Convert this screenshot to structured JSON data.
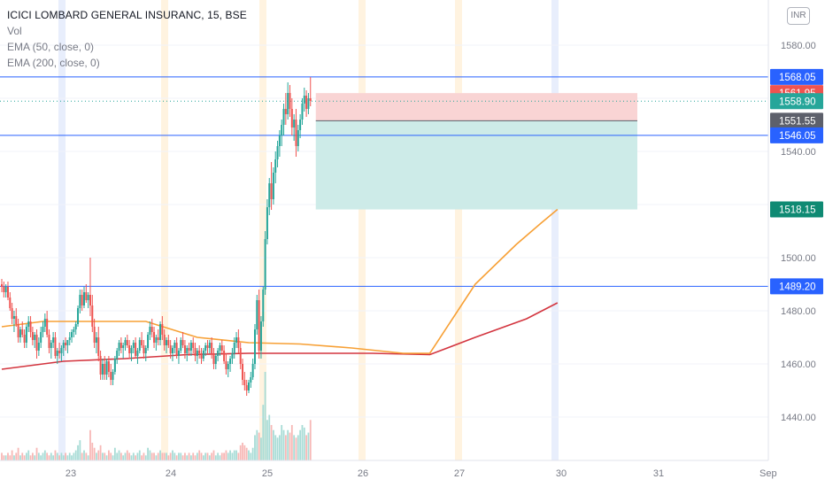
{
  "legend": {
    "title": "ICICI LOMBARD GENERAL INSURANC, 15, BSE",
    "indicators": [
      "Vol",
      "EMA (50, close, 0)",
      "EMA (200, close, 0)"
    ]
  },
  "currency_button": "INR",
  "colors": {
    "up": "#26a69a",
    "down": "#ef5350",
    "ema50": "#f7a035",
    "ema200": "#d3353f",
    "hline": "#2962ff",
    "last_price": "#26a69a",
    "stop_zone": "#f9d4d4",
    "target_zone": "#cdebe8",
    "entry_label": "#5d606b",
    "stop_label": "#ef5350",
    "session_band_orange": "#fff3e0",
    "session_band_blue": "#e8eefc"
  },
  "chart_data": {
    "type": "candlestick",
    "symbol": "ICICI LOMBARD GENERAL INSURANC",
    "interval": "15",
    "exchange": "BSE",
    "x_tick_labels": [
      "23",
      "24",
      "25",
      "26",
      "27",
      "30",
      "31",
      "Sep"
    ],
    "y_ticks": [
      1440,
      1460,
      1480,
      1500,
      1520,
      1540,
      1560,
      1580
    ],
    "y_tick_labels": [
      "1440.00",
      "1460.00",
      "1480.00",
      "1500.00",
      "1540.00",
      "1580.00"
    ],
    "ylim": [
      1417.0,
      1595.0
    ],
    "horizontal_lines": [
      1568.05,
      1546.05,
      1489.2
    ],
    "price_labels": [
      {
        "value": 1568.05,
        "text": "1568.05",
        "kind": "hline"
      },
      {
        "value": 1561.95,
        "text": "1561.95",
        "kind": "stop"
      },
      {
        "value": 1558.9,
        "text": "1558.90",
        "kind": "last"
      },
      {
        "value": 1551.55,
        "text": "1551.55",
        "kind": "entry"
      },
      {
        "value": 1546.05,
        "text": "1546.05",
        "kind": "hline"
      },
      {
        "value": 1518.15,
        "text": "1518.15",
        "kind": "target"
      },
      {
        "value": 1489.2,
        "text": "1489.20",
        "kind": "hline"
      }
    ],
    "short_position": {
      "entry": 1551.55,
      "stop": 1561.95,
      "target": 1518.15
    },
    "last_price": 1558.9,
    "ema50_path": [
      {
        "i": 0,
        "v": 1474
      },
      {
        "i": 20,
        "v": 1476
      },
      {
        "i": 45,
        "v": 1476
      },
      {
        "i": 70,
        "v": 1476
      },
      {
        "i": 95,
        "v": 1470
      },
      {
        "i": 120,
        "v": 1468
      },
      {
        "i": 145,
        "v": 1467.5
      },
      {
        "i": 170,
        "v": 1466
      },
      {
        "i": 195,
        "v": 1464
      },
      {
        "i": 208,
        "v": 1464
      },
      {
        "i": 230,
        "v": 1490
      },
      {
        "i": 250,
        "v": 1505
      },
      {
        "i": 262,
        "v": 1513
      },
      {
        "i": 270,
        "v": 1518.15
      }
    ],
    "ema200_path": [
      {
        "i": 0,
        "v": 1458
      },
      {
        "i": 30,
        "v": 1461
      },
      {
        "i": 60,
        "v": 1462
      },
      {
        "i": 90,
        "v": 1463.5
      },
      {
        "i": 120,
        "v": 1464
      },
      {
        "i": 150,
        "v": 1464
      },
      {
        "i": 180,
        "v": 1464
      },
      {
        "i": 208,
        "v": 1463.5
      },
      {
        "i": 230,
        "v": 1470
      },
      {
        "i": 255,
        "v": 1477
      },
      {
        "i": 270,
        "v": 1483
      }
    ],
    "candles": [
      [
        1490,
        1492,
        1487,
        1489
      ],
      [
        1489,
        1491,
        1485,
        1487
      ],
      [
        1487,
        1490,
        1485,
        1489
      ],
      [
        1489,
        1491,
        1484,
        1485
      ],
      [
        1485,
        1487,
        1480,
        1481
      ],
      [
        1481,
        1483,
        1475,
        1477
      ],
      [
        1477,
        1480,
        1472,
        1478
      ],
      [
        1478,
        1481,
        1474,
        1475
      ],
      [
        1475,
        1477,
        1468,
        1470
      ],
      [
        1470,
        1474,
        1468,
        1473
      ],
      [
        1473,
        1476,
        1470,
        1471
      ],
      [
        1471,
        1473,
        1466,
        1468
      ],
      [
        1468,
        1475,
        1466,
        1474
      ],
      [
        1474,
        1478,
        1472,
        1476
      ],
      [
        1476,
        1478,
        1470,
        1472
      ],
      [
        1472,
        1474,
        1467,
        1469
      ],
      [
        1469,
        1472,
        1466,
        1471
      ],
      [
        1471,
        1473,
        1462,
        1465
      ],
      [
        1465,
        1470,
        1463,
        1468
      ],
      [
        1468,
        1474,
        1466,
        1472
      ],
      [
        1472,
        1476,
        1470,
        1474
      ],
      [
        1474,
        1479,
        1472,
        1477
      ],
      [
        1477,
        1480,
        1470,
        1471
      ],
      [
        1471,
        1473,
        1464,
        1466
      ],
      [
        1466,
        1469,
        1462,
        1468
      ],
      [
        1468,
        1472,
        1466,
        1470
      ],
      [
        1470,
        1472,
        1462,
        1463
      ],
      [
        1463,
        1466,
        1460,
        1465
      ],
      [
        1465,
        1468,
        1462,
        1464
      ],
      [
        1464,
        1467,
        1461,
        1466
      ],
      [
        1466,
        1469,
        1463,
        1468
      ],
      [
        1468,
        1470,
        1465,
        1467
      ],
      [
        1467,
        1469,
        1464,
        1469
      ],
      [
        1469,
        1472,
        1467,
        1470
      ],
      [
        1470,
        1473,
        1468,
        1472
      ],
      [
        1472,
        1474,
        1470,
        1473
      ],
      [
        1473,
        1476,
        1471,
        1475
      ],
      [
        1475,
        1482,
        1474,
        1481
      ],
      [
        1481,
        1488,
        1479,
        1486
      ],
      [
        1486,
        1488,
        1480,
        1482
      ],
      [
        1482,
        1489,
        1481,
        1487
      ],
      [
        1487,
        1490,
        1483,
        1484
      ],
      [
        1484,
        1487,
        1481,
        1486
      ],
      [
        1486,
        1500,
        1478,
        1482
      ],
      [
        1482,
        1486,
        1472,
        1474
      ],
      [
        1474,
        1477,
        1466,
        1468
      ],
      [
        1468,
        1472,
        1464,
        1470
      ],
      [
        1470,
        1474,
        1461,
        1463
      ],
      [
        1463,
        1465,
        1454,
        1456
      ],
      [
        1456,
        1462,
        1454,
        1460
      ],
      [
        1460,
        1463,
        1454,
        1456
      ],
      [
        1456,
        1462,
        1454,
        1461
      ],
      [
        1461,
        1463,
        1455,
        1457
      ],
      [
        1457,
        1460,
        1452,
        1454
      ],
      [
        1454,
        1458,
        1452,
        1457
      ],
      [
        1457,
        1463,
        1456,
        1462
      ],
      [
        1462,
        1466,
        1460,
        1465
      ],
      [
        1465,
        1469,
        1463,
        1468
      ],
      [
        1468,
        1470,
        1464,
        1466
      ],
      [
        1466,
        1468,
        1462,
        1467
      ],
      [
        1467,
        1470,
        1465,
        1469
      ],
      [
        1469,
        1471,
        1466,
        1467
      ],
      [
        1467,
        1469,
        1462,
        1464
      ],
      [
        1464,
        1467,
        1461,
        1466
      ],
      [
        1466,
        1469,
        1464,
        1468
      ],
      [
        1468,
        1470,
        1462,
        1463
      ],
      [
        1463,
        1466,
        1460,
        1465
      ],
      [
        1465,
        1470,
        1464,
        1469
      ],
      [
        1469,
        1472,
        1466,
        1467
      ],
      [
        1467,
        1469,
        1462,
        1464
      ],
      [
        1464,
        1467,
        1461,
        1466
      ],
      [
        1466,
        1472,
        1465,
        1471
      ],
      [
        1471,
        1476,
        1469,
        1474
      ],
      [
        1474,
        1477,
        1470,
        1472
      ],
      [
        1472,
        1474,
        1466,
        1468
      ],
      [
        1468,
        1471,
        1465,
        1470
      ],
      [
        1470,
        1473,
        1467,
        1469
      ],
      [
        1469,
        1476,
        1467,
        1475
      ],
      [
        1475,
        1478,
        1469,
        1471
      ],
      [
        1471,
        1473,
        1465,
        1467
      ],
      [
        1467,
        1470,
        1464,
        1469
      ],
      [
        1469,
        1471,
        1466,
        1467
      ],
      [
        1467,
        1469,
        1462,
        1464
      ],
      [
        1464,
        1467,
        1461,
        1466
      ],
      [
        1466,
        1469,
        1464,
        1468
      ],
      [
        1468,
        1470,
        1462,
        1463
      ],
      [
        1463,
        1466,
        1460,
        1465
      ],
      [
        1465,
        1470,
        1464,
        1469
      ],
      [
        1469,
        1472,
        1466,
        1467
      ],
      [
        1467,
        1469,
        1462,
        1464
      ],
      [
        1464,
        1467,
        1461,
        1466
      ],
      [
        1466,
        1468,
        1463,
        1465
      ],
      [
        1465,
        1469,
        1463,
        1468
      ],
      [
        1468,
        1470,
        1464,
        1466
      ],
      [
        1466,
        1468,
        1461,
        1463
      ],
      [
        1463,
        1466,
        1460,
        1465
      ],
      [
        1465,
        1467,
        1462,
        1464
      ],
      [
        1464,
        1466,
        1460,
        1462
      ],
      [
        1462,
        1466,
        1461,
        1465
      ],
      [
        1465,
        1468,
        1463,
        1467
      ],
      [
        1467,
        1469,
        1464,
        1466
      ],
      [
        1466,
        1469,
        1464,
        1468
      ],
      [
        1468,
        1470,
        1462,
        1464
      ],
      [
        1464,
        1466,
        1458,
        1460
      ],
      [
        1460,
        1464,
        1458,
        1463
      ],
      [
        1463,
        1466,
        1461,
        1465
      ],
      [
        1465,
        1468,
        1463,
        1467
      ],
      [
        1467,
        1469,
        1464,
        1465
      ],
      [
        1465,
        1467,
        1460,
        1461
      ],
      [
        1461,
        1464,
        1456,
        1458
      ],
      [
        1458,
        1461,
        1455,
        1460
      ],
      [
        1460,
        1463,
        1457,
        1462
      ],
      [
        1462,
        1466,
        1460,
        1464
      ],
      [
        1464,
        1470,
        1462,
        1468
      ],
      [
        1468,
        1472,
        1466,
        1470
      ],
      [
        1470,
        1473,
        1464,
        1466
      ],
      [
        1466,
        1468,
        1458,
        1460
      ],
      [
        1460,
        1462,
        1452,
        1454
      ],
      [
        1454,
        1457,
        1450,
        1452
      ],
      [
        1452,
        1454,
        1448,
        1450
      ],
      [
        1450,
        1454,
        1449,
        1453
      ],
      [
        1453,
        1457,
        1451,
        1455
      ],
      [
        1455,
        1462,
        1454,
        1460
      ],
      [
        1460,
        1475,
        1458,
        1473
      ],
      [
        1473,
        1486,
        1471,
        1484
      ],
      [
        1484,
        1488,
        1462,
        1465
      ],
      [
        1465,
        1478,
        1462,
        1476
      ],
      [
        1476,
        1489,
        1474,
        1488
      ],
      [
        1488,
        1510,
        1486,
        1507
      ],
      [
        1507,
        1522,
        1505,
        1519
      ],
      [
        1519,
        1530,
        1516,
        1528
      ],
      [
        1528,
        1536,
        1518,
        1522
      ],
      [
        1522,
        1534,
        1520,
        1532
      ],
      [
        1532,
        1540,
        1528,
        1537
      ],
      [
        1537,
        1544,
        1534,
        1542
      ],
      [
        1542,
        1548,
        1538,
        1546
      ],
      [
        1546,
        1552,
        1542,
        1550
      ],
      [
        1550,
        1558,
        1546,
        1556
      ],
      [
        1556,
        1562,
        1550,
        1554
      ],
      [
        1554,
        1566,
        1552,
        1562
      ],
      [
        1562,
        1565,
        1553,
        1556
      ],
      [
        1556,
        1560,
        1546,
        1549
      ],
      [
        1549,
        1554,
        1544,
        1552
      ],
      [
        1552,
        1556,
        1538,
        1542
      ],
      [
        1542,
        1550,
        1540,
        1548
      ],
      [
        1548,
        1554,
        1545,
        1552
      ],
      [
        1552,
        1560,
        1550,
        1558
      ],
      [
        1558,
        1564,
        1555,
        1561
      ],
      [
        1561,
        1563,
        1553,
        1556
      ],
      [
        1556,
        1562,
        1554,
        1560
      ],
      [
        1560,
        1568,
        1557,
        1559
      ]
    ],
    "candles_note_columns": [
      "open",
      "high",
      "low",
      "close"
    ],
    "volumes": [
      3,
      2,
      2,
      3,
      2,
      4,
      2,
      3,
      5,
      2,
      3,
      2,
      3,
      4,
      2,
      3,
      2,
      5,
      3,
      2,
      3,
      4,
      3,
      2,
      3,
      2,
      4,
      3,
      2,
      3,
      2,
      3,
      2,
      3,
      2,
      3,
      4,
      6,
      8,
      3,
      4,
      3,
      2,
      12,
      7,
      5,
      3,
      4,
      6,
      3,
      3,
      2,
      4,
      3,
      2,
      5,
      3,
      4,
      3,
      2,
      3,
      4,
      3,
      2,
      3,
      2,
      3,
      4,
      2,
      3,
      2,
      5,
      4,
      3,
      3,
      2,
      3,
      4,
      3,
      3,
      3,
      2,
      3,
      4,
      3,
      2,
      3,
      3,
      2,
      3,
      2,
      3,
      2,
      3,
      2,
      3,
      4,
      3,
      2,
      3,
      3,
      2,
      3,
      4,
      2,
      3,
      2,
      3,
      3,
      4,
      3,
      4,
      3,
      4,
      4,
      3,
      6,
      7,
      6,
      5,
      4,
      3,
      5,
      10,
      12,
      11,
      9,
      22,
      35,
      16,
      18,
      14,
      12,
      10,
      9,
      10,
      14,
      12,
      10,
      12,
      11,
      14,
      10,
      9,
      10,
      12,
      14,
      13,
      10,
      11,
      16
    ]
  }
}
